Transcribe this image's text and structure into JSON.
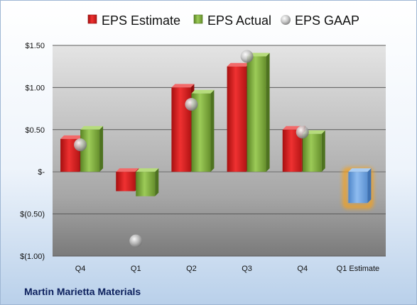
{
  "company": "Martin Marietta Materials",
  "chart_data": {
    "type": "bar",
    "categories": [
      "Q4",
      "Q1",
      "Q2",
      "Q3",
      "Q4",
      "Q1 Estimate"
    ],
    "ylim": [
      -1.0,
      1.5
    ],
    "yticks": [
      1.5,
      1.0,
      0.5,
      0,
      -0.5,
      -1.0
    ],
    "ytick_labels": [
      "$1.50",
      "$1.00",
      "$0.50",
      "$-",
      "$(0.50)",
      "$(1.00)"
    ],
    "grid": true,
    "legend_position": "top",
    "legend": [
      {
        "label": "EPS Estimate",
        "color": "#d81e1e",
        "marker": "cube"
      },
      {
        "label": "EPS Actual",
        "color": "#79a83a",
        "marker": "cube"
      },
      {
        "label": "EPS GAAP",
        "color": "#b0b0b0",
        "marker": "sphere"
      }
    ],
    "series": [
      {
        "name": "EPS Estimate",
        "values": [
          0.39,
          -0.23,
          1.0,
          1.25,
          0.5,
          null
        ]
      },
      {
        "name": "EPS Actual",
        "values": [
          0.5,
          -0.29,
          0.93,
          1.37,
          0.45,
          null
        ]
      },
      {
        "name": "EPS GAAP",
        "values": [
          0.32,
          -0.82,
          0.8,
          1.37,
          0.47,
          null
        ]
      }
    ],
    "forecast": {
      "category": "Q1 Estimate",
      "value": -0.37,
      "color": "#6fa3dd",
      "glow": "#f5a11a"
    }
  }
}
